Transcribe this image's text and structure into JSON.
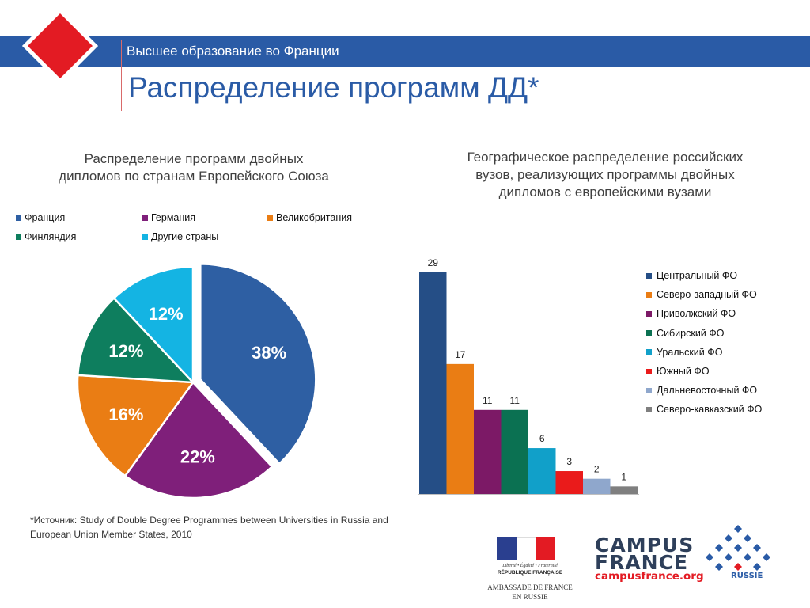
{
  "header": {
    "section_label": "Высшее образование во Франции",
    "title": "Распределение программ ДД*"
  },
  "colors": {
    "band": "#2a5ba6",
    "accent_red": "#e31b23",
    "title_blue": "#2a5ba6"
  },
  "chart_data": [
    {
      "type": "pie",
      "title": "Распределение программ двойных\nдипломов по странам Европейского Союза",
      "legend_position": "top",
      "categories": [
        "Франция",
        "Германия",
        "Великобритания",
        "Финляндия",
        "Другие страны"
      ],
      "values": [
        38,
        22,
        16,
        12,
        12
      ],
      "labels": [
        "38%",
        "22%",
        "16%",
        "12%",
        "12%"
      ],
      "colors": [
        "#2e5fa3",
        "#7f1f7a",
        "#ea7d14",
        "#0e7e5e",
        "#14b4e3"
      ],
      "exploded": "Франция"
    },
    {
      "type": "bar",
      "title": "Географическое распределение российских\nвузов, реализующих программы двойных\nдипломов  с европейскими вузами",
      "legend_position": "right",
      "categories": [
        "Центральный ФО",
        "Северо-западный ФО",
        "Приволжский ФО",
        "Сибирский ФО",
        "Уральский ФО",
        "Южный ФО",
        "Дальневосточный ФО",
        "Северо-кавказский ФО"
      ],
      "values": [
        29,
        17,
        11,
        11,
        6,
        3,
        2,
        1
      ],
      "colors": [
        "#254e86",
        "#ea7d14",
        "#7c1966",
        "#0b7152",
        "#11a0c9",
        "#ea1b1b",
        "#8fa7cc",
        "#7f7f7f"
      ],
      "ylim": [
        0,
        29
      ],
      "grid": false
    }
  ],
  "footnote": "*Источник:  Study of Double Degree Programmes between Universities in Russia and European Union Member States, 2010",
  "logos": {
    "embassy_motto": "Liberté • Égalité • Fraternité",
    "embassy_republic": "RÉPUBLIQUE FRANÇAISE",
    "embassy_name": "AMBASSADE DE FRANCE\nEN RUSSIE",
    "campus_word1": "CAMPUS",
    "campus_word2": "FRANCE",
    "campus_url": "campusfrance.org",
    "campus_country": "RUSSIE"
  }
}
